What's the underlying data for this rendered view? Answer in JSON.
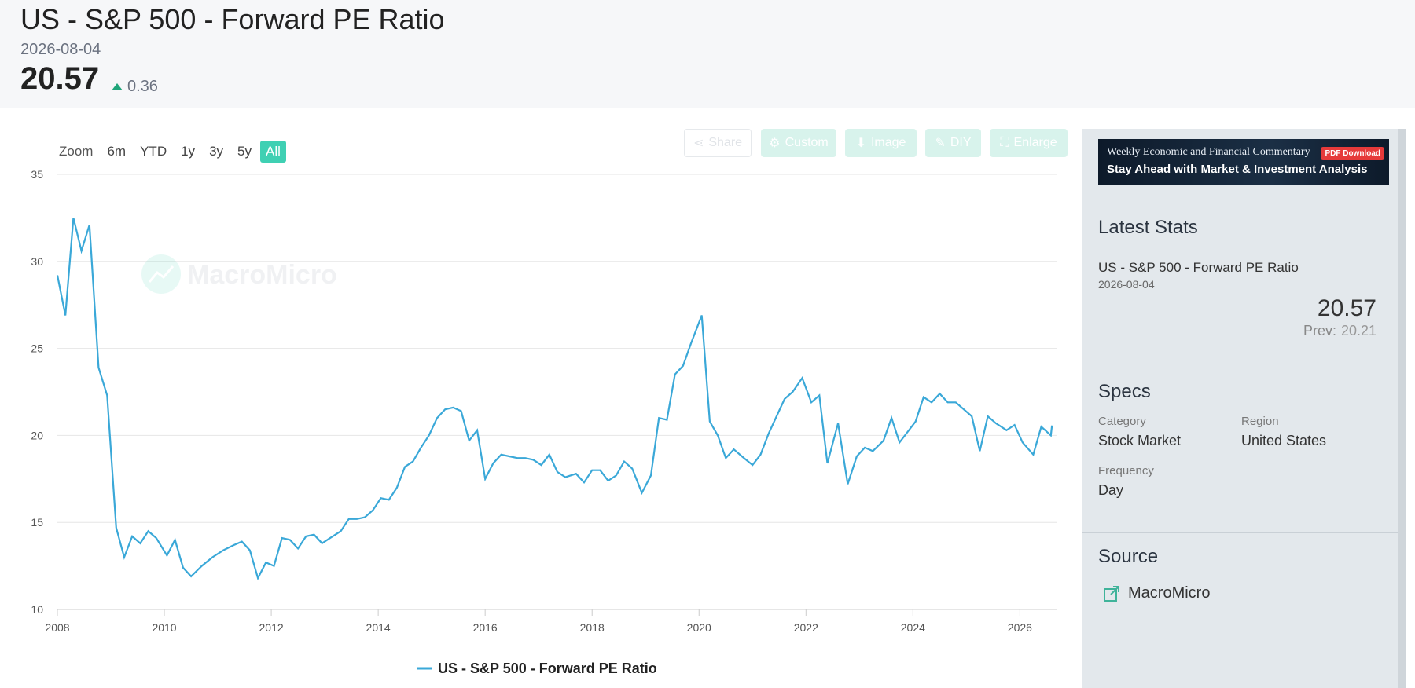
{
  "header": {
    "title": "US - S&P 500 - Forward PE Ratio",
    "date": "2026-08-04",
    "value": "20.57",
    "change": "0.36"
  },
  "zoom": {
    "label": "Zoom",
    "options": [
      "6m",
      "YTD",
      "1y",
      "3y",
      "5y",
      "All"
    ],
    "active": "All"
  },
  "toolbar": {
    "share": "Share",
    "custom": "Custom",
    "image": "Image",
    "diy": "DIY",
    "enlarge": "Enlarge"
  },
  "watermark": "MacroMicro",
  "banner": {
    "line1": "Weekly Economic and Financial Commentary",
    "line2": "Stay Ahead with  Market & Investment Analysis",
    "badge": "PDF Download"
  },
  "latest": {
    "heading": "Latest Stats",
    "name": "US - S&P 500 - Forward PE Ratio",
    "date": "2026-08-04",
    "value": "20.57",
    "prev_label": "Prev:",
    "prev_value": "20.21"
  },
  "specs": {
    "heading": "Specs",
    "category_label": "Category",
    "category": "Stock Market",
    "region_label": "Region",
    "region": "United States",
    "frequency_label": "Frequency",
    "frequency": "Day"
  },
  "source": {
    "heading": "Source",
    "name": "MacroMicro"
  },
  "colors": {
    "line": "#3aa8d8",
    "accent": "#3fd0b3",
    "up": "#20a57a"
  },
  "chart_data": {
    "type": "line",
    "title": "",
    "xlabel": "",
    "ylabel": "",
    "ylim": [
      10,
      35
    ],
    "yticks": [
      10,
      15,
      20,
      25,
      30,
      35
    ],
    "xlim": [
      2008,
      2026.7
    ],
    "xticks": [
      2008,
      2010,
      2012,
      2014,
      2016,
      2018,
      2020,
      2022,
      2024,
      2026
    ],
    "grid": true,
    "legend": "bottom-center",
    "series": [
      {
        "name": "US - S&P 500 - Forward PE Ratio",
        "points": [
          [
            2008.0,
            29.2
          ],
          [
            2008.15,
            26.9
          ],
          [
            2008.3,
            32.5
          ],
          [
            2008.45,
            30.6
          ],
          [
            2008.6,
            32.1
          ],
          [
            2008.77,
            23.9
          ],
          [
            2008.93,
            22.3
          ],
          [
            2009.1,
            14.7
          ],
          [
            2009.25,
            13.0
          ],
          [
            2009.4,
            14.2
          ],
          [
            2009.55,
            13.8
          ],
          [
            2009.7,
            14.5
          ],
          [
            2009.85,
            14.1
          ],
          [
            2010.05,
            13.1
          ],
          [
            2010.2,
            14.0
          ],
          [
            2010.35,
            12.4
          ],
          [
            2010.5,
            11.9
          ],
          [
            2010.7,
            12.5
          ],
          [
            2010.9,
            13.0
          ],
          [
            2011.1,
            13.4
          ],
          [
            2011.3,
            13.7
          ],
          [
            2011.45,
            13.9
          ],
          [
            2011.6,
            13.4
          ],
          [
            2011.75,
            11.8
          ],
          [
            2011.9,
            12.7
          ],
          [
            2012.05,
            12.5
          ],
          [
            2012.2,
            14.1
          ],
          [
            2012.35,
            14.0
          ],
          [
            2012.5,
            13.5
          ],
          [
            2012.65,
            14.2
          ],
          [
            2012.8,
            14.3
          ],
          [
            2012.95,
            13.8
          ],
          [
            2013.1,
            14.1
          ],
          [
            2013.3,
            14.5
          ],
          [
            2013.45,
            15.2
          ],
          [
            2013.6,
            15.2
          ],
          [
            2013.75,
            15.3
          ],
          [
            2013.9,
            15.7
          ],
          [
            2014.05,
            16.4
          ],
          [
            2014.2,
            16.3
          ],
          [
            2014.35,
            17.0
          ],
          [
            2014.5,
            18.2
          ],
          [
            2014.65,
            18.5
          ],
          [
            2014.8,
            19.3
          ],
          [
            2014.95,
            20.0
          ],
          [
            2015.1,
            21.0
          ],
          [
            2015.25,
            21.5
          ],
          [
            2015.4,
            21.6
          ],
          [
            2015.55,
            21.4
          ],
          [
            2015.7,
            19.7
          ],
          [
            2015.85,
            20.3
          ],
          [
            2016.0,
            17.5
          ],
          [
            2016.15,
            18.4
          ],
          [
            2016.3,
            18.9
          ],
          [
            2016.45,
            18.8
          ],
          [
            2016.6,
            18.7
          ],
          [
            2016.75,
            18.7
          ],
          [
            2016.9,
            18.6
          ],
          [
            2017.05,
            18.3
          ],
          [
            2017.2,
            18.9
          ],
          [
            2017.35,
            17.9
          ],
          [
            2017.5,
            17.6
          ],
          [
            2017.7,
            17.8
          ],
          [
            2017.85,
            17.3
          ],
          [
            2018.0,
            18.0
          ],
          [
            2018.15,
            18.0
          ],
          [
            2018.3,
            17.4
          ],
          [
            2018.45,
            17.7
          ],
          [
            2018.6,
            18.5
          ],
          [
            2018.75,
            18.1
          ],
          [
            2018.93,
            16.7
          ],
          [
            2019.1,
            17.7
          ],
          [
            2019.25,
            21.0
          ],
          [
            2019.4,
            20.9
          ],
          [
            2019.55,
            23.5
          ],
          [
            2019.7,
            24.0
          ],
          [
            2019.85,
            25.3
          ],
          [
            2020.05,
            26.9
          ],
          [
            2020.2,
            20.8
          ],
          [
            2020.35,
            20.0
          ],
          [
            2020.5,
            18.7
          ],
          [
            2020.65,
            19.2
          ],
          [
            2020.8,
            18.8
          ],
          [
            2021.0,
            18.3
          ],
          [
            2021.15,
            18.9
          ],
          [
            2021.3,
            20.1
          ],
          [
            2021.45,
            21.1
          ],
          [
            2021.6,
            22.1
          ],
          [
            2021.75,
            22.5
          ],
          [
            2021.93,
            23.3
          ],
          [
            2022.1,
            21.9
          ],
          [
            2022.25,
            22.3
          ],
          [
            2022.4,
            18.4
          ],
          [
            2022.6,
            20.7
          ],
          [
            2022.78,
            17.2
          ],
          [
            2022.95,
            18.8
          ],
          [
            2023.1,
            19.3
          ],
          [
            2023.25,
            19.1
          ],
          [
            2023.45,
            19.7
          ],
          [
            2023.6,
            21.0
          ],
          [
            2023.75,
            19.6
          ],
          [
            2023.9,
            20.2
          ],
          [
            2024.05,
            20.8
          ],
          [
            2024.2,
            22.2
          ],
          [
            2024.35,
            21.9
          ],
          [
            2024.5,
            22.4
          ],
          [
            2024.65,
            21.9
          ],
          [
            2024.8,
            21.9
          ],
          [
            2024.95,
            21.5
          ],
          [
            2025.1,
            21.1
          ],
          [
            2025.25,
            19.1
          ],
          [
            2025.4,
            21.1
          ],
          [
            2025.55,
            20.7
          ],
          [
            2025.75,
            20.3
          ],
          [
            2025.9,
            20.6
          ],
          [
            2026.05,
            19.6
          ],
          [
            2026.25,
            18.9
          ],
          [
            2026.4,
            20.5
          ],
          [
            2026.58,
            20.0
          ],
          [
            2026.6,
            20.57
          ]
        ]
      }
    ]
  }
}
